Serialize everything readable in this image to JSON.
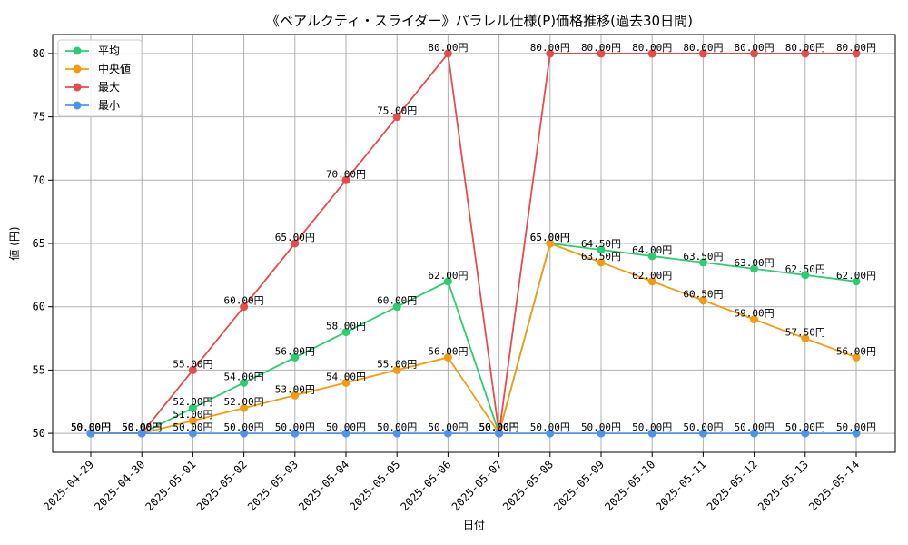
{
  "chart_data": {
    "type": "line",
    "title": "《ベアルクティ・スライダー》パラレル仕様(P)価格推移(過去30日間)",
    "xlabel": "日付",
    "ylabel": "値 (円)",
    "ylim": [
      48.5,
      81.5
    ],
    "yticks": [
      50,
      55,
      60,
      65,
      70,
      75,
      80
    ],
    "grid": true,
    "legend_position": "top-left",
    "label_suffix": "円",
    "categories": [
      "2025-04-29",
      "2025-04-30",
      "2025-05-01",
      "2025-05-02",
      "2025-05-03",
      "2025-05-04",
      "2025-05-05",
      "2025-05-06",
      "2025-05-07",
      "2025-05-08",
      "2025-05-09",
      "2025-05-10",
      "2025-05-11",
      "2025-05-12",
      "2025-05-13",
      "2025-05-14"
    ],
    "series": [
      {
        "name": "平均",
        "color": "#2ecc71",
        "values": [
          50,
          50,
          52,
          54,
          56,
          58,
          60,
          62,
          50,
          65,
          64.5,
          64,
          63.5,
          63,
          62.5,
          62
        ]
      },
      {
        "name": "中央値",
        "color": "#f39c12",
        "values": [
          50,
          50,
          51,
          52,
          53,
          54,
          55,
          56,
          50,
          65,
          63.5,
          62,
          60.5,
          59,
          57.5,
          56
        ]
      },
      {
        "name": "最大",
        "color": "#e74c4c",
        "values": [
          50,
          50,
          55,
          60,
          65,
          70,
          75,
          80,
          50,
          80,
          80,
          80,
          80,
          80,
          80,
          80
        ]
      },
      {
        "name": "最小",
        "color": "#4c94ec",
        "values": [
          50,
          50,
          50,
          50,
          50,
          50,
          50,
          50,
          50,
          50,
          50,
          50,
          50,
          50,
          50,
          50
        ]
      }
    ]
  }
}
